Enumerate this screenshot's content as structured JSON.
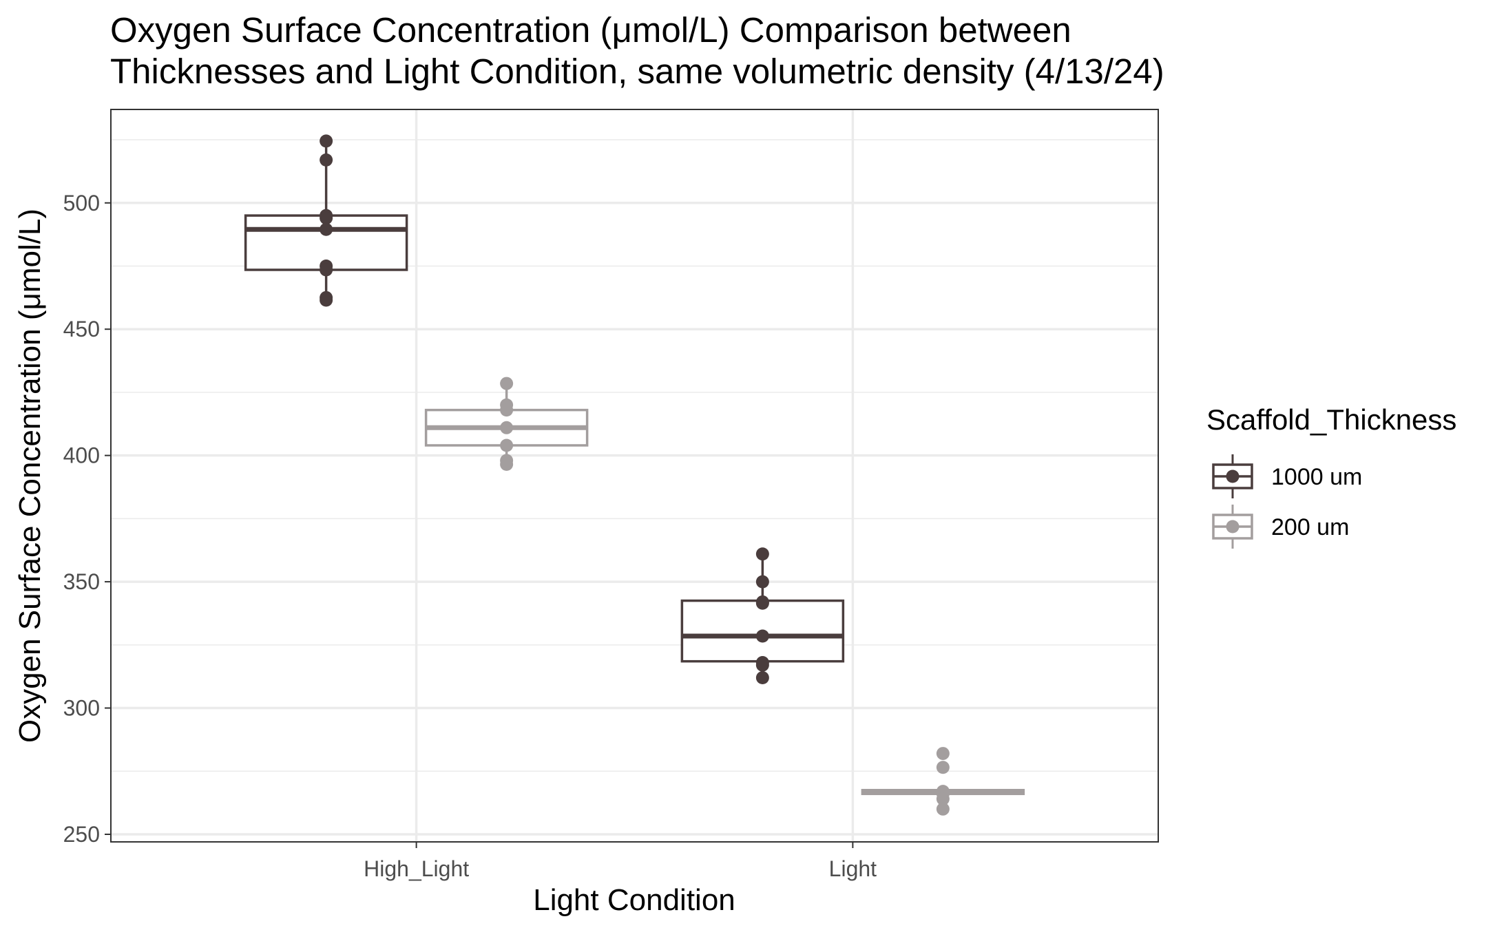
{
  "chart_data": {
    "type": "boxplot",
    "title_lines": [
      "Oxygen Surface Concentration (μmol/L) Comparison between",
      "Thicknesses and Light Condition, same volumetric density (4/13/24)"
    ],
    "xlabel": "Light Condition",
    "ylabel": "Oxygen Surface Concentration (μmol/L)",
    "categories": [
      "High_Light",
      "Light"
    ],
    "ylim": [
      247,
      537
    ],
    "yticks": [
      250,
      300,
      350,
      400,
      450,
      500
    ],
    "grid": true,
    "legend": {
      "title": "Scaffold_Thickness",
      "placement": "right"
    },
    "series": [
      {
        "name": "1000 um",
        "color": "#4a3d3d",
        "boxes": [
          {
            "category": "High_Light",
            "q1": 473.5,
            "median": 489.5,
            "q3": 495,
            "whisker_low": 461.5,
            "whisker_high": 524.5,
            "points": [
              524.5,
              517,
              495,
              494,
              489.5,
              475,
              473.5,
              462.5,
              461.5
            ]
          },
          {
            "category": "Light",
            "q1": 318.5,
            "median": 328.5,
            "q3": 342.5,
            "whisker_low": 312,
            "whisker_high": 361,
            "points": [
              361,
              350,
              342,
              341.5,
              328.5,
              318,
              317,
              312
            ]
          }
        ]
      },
      {
        "name": "200 um",
        "color": "#a39e9e",
        "boxes": [
          {
            "category": "High_Light",
            "q1": 404,
            "median": 411,
            "q3": 418,
            "whisker_low": 396,
            "whisker_high": 428.5,
            "points": [
              428.5,
              420,
              418,
              411,
              404,
              398,
              396.5
            ]
          },
          {
            "category": "Light",
            "q1": 266,
            "median": 267,
            "q3": 267.5,
            "whisker_low": 265,
            "whisker_high": 268,
            "points": [
              282,
              276.5,
              267,
              266,
              264,
              260
            ]
          }
        ]
      }
    ]
  }
}
